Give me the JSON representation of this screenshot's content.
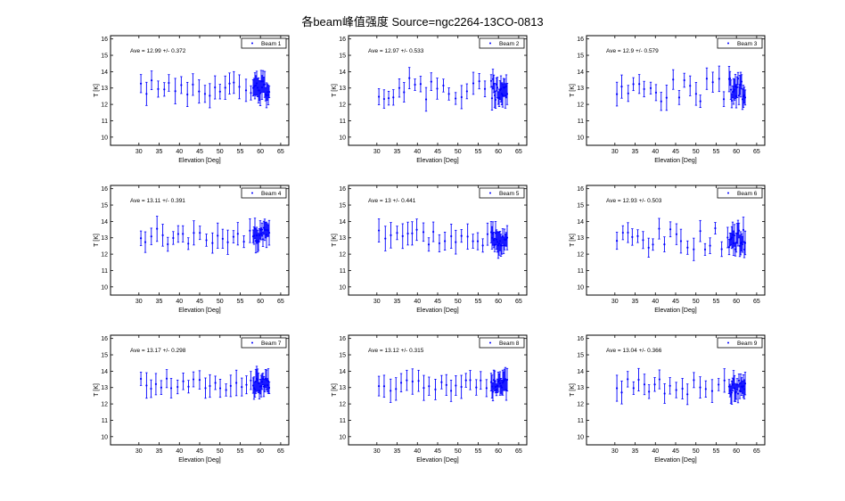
{
  "title": "各beam峰值强度 Source=ngc2264-13CO-0813",
  "colors": {
    "data": "#0000ff",
    "axis": "#000000",
    "background": "#ffffff"
  },
  "chart_data": [
    {
      "type": "scatter",
      "legend": "Beam 1",
      "annotation": "Ave = 12.99 +/- 0.372",
      "xlabel": "Elevation [Deg]",
      "ylabel": "T [K]",
      "xlim": [
        23,
        67
      ],
      "ylim": [
        9.5,
        16.2
      ],
      "xticks": [
        30,
        35,
        40,
        45,
        50,
        55,
        60,
        65
      ],
      "yticks": [
        10,
        11,
        12,
        13,
        14,
        15,
        16
      ],
      "legend_position": "top-right",
      "grid": false,
      "mean": 12.99,
      "spread": 0.372,
      "seed": 1
    },
    {
      "type": "scatter",
      "legend": "Beam 2",
      "annotation": "Ave = 12.97 +/- 0.533",
      "xlabel": "Elevation [Deg]",
      "ylabel": "T [K]",
      "xlim": [
        23,
        67
      ],
      "ylim": [
        9.5,
        16.2
      ],
      "xticks": [
        30,
        35,
        40,
        45,
        50,
        55,
        60,
        65
      ],
      "yticks": [
        10,
        11,
        12,
        13,
        14,
        15,
        16
      ],
      "legend_position": "top-right",
      "grid": false,
      "mean": 12.97,
      "spread": 0.533,
      "seed": 2
    },
    {
      "type": "scatter",
      "legend": "Beam 3",
      "annotation": "Ave = 12.9 +/- 0.579",
      "xlabel": "Elevation [Deg]",
      "ylabel": "T [K]",
      "xlim": [
        23,
        67
      ],
      "ylim": [
        9.5,
        16.2
      ],
      "xticks": [
        30,
        35,
        40,
        45,
        50,
        55,
        60,
        65
      ],
      "yticks": [
        10,
        11,
        12,
        13,
        14,
        15,
        16
      ],
      "legend_position": "top-right",
      "grid": false,
      "mean": 12.9,
      "spread": 0.579,
      "seed": 3
    },
    {
      "type": "scatter",
      "legend": "Beam 4",
      "annotation": "Ave = 13.11 +/- 0.391",
      "xlabel": "Elevation [Deg]",
      "ylabel": "T [K]",
      "xlim": [
        23,
        67
      ],
      "ylim": [
        9.5,
        16.2
      ],
      "xticks": [
        30,
        35,
        40,
        45,
        50,
        55,
        60,
        65
      ],
      "yticks": [
        10,
        11,
        12,
        13,
        14,
        15,
        16
      ],
      "legend_position": "top-right",
      "grid": false,
      "mean": 13.11,
      "spread": 0.391,
      "seed": 4
    },
    {
      "type": "scatter",
      "legend": "Beam 5",
      "annotation": "Ave = 13 +/- 0.441",
      "xlabel": "Elevation [Deg]",
      "ylabel": "T [K]",
      "xlim": [
        23,
        67
      ],
      "ylim": [
        9.5,
        16.2
      ],
      "xticks": [
        30,
        35,
        40,
        45,
        50,
        55,
        60,
        65
      ],
      "yticks": [
        10,
        11,
        12,
        13,
        14,
        15,
        16
      ],
      "legend_position": "top-right",
      "grid": false,
      "mean": 13.0,
      "spread": 0.441,
      "seed": 5
    },
    {
      "type": "scatter",
      "legend": "Beam 6",
      "annotation": "Ave = 12.93 +/- 0.503",
      "xlabel": "Elevation [Deg]",
      "ylabel": "T [K]",
      "xlim": [
        23,
        67
      ],
      "ylim": [
        9.5,
        16.2
      ],
      "xticks": [
        30,
        35,
        40,
        45,
        50,
        55,
        60,
        65
      ],
      "yticks": [
        10,
        11,
        12,
        13,
        14,
        15,
        16
      ],
      "legend_position": "top-right",
      "grid": false,
      "mean": 12.93,
      "spread": 0.503,
      "seed": 6
    },
    {
      "type": "scatter",
      "legend": "Beam 7",
      "annotation": "Ave = 13.17 +/- 0.298",
      "xlabel": "Elevation [Deg]",
      "ylabel": "T [K]",
      "xlim": [
        23,
        67
      ],
      "ylim": [
        9.5,
        16.2
      ],
      "xticks": [
        30,
        35,
        40,
        45,
        50,
        55,
        60,
        65
      ],
      "yticks": [
        10,
        11,
        12,
        13,
        14,
        15,
        16
      ],
      "legend_position": "top-right",
      "grid": false,
      "mean": 13.17,
      "spread": 0.298,
      "seed": 7
    },
    {
      "type": "scatter",
      "legend": "Beam 8",
      "annotation": "Ave = 13.12 +/- 0.315",
      "xlabel": "Elevation [Deg]",
      "ylabel": "T [K]",
      "xlim": [
        23,
        67
      ],
      "ylim": [
        9.5,
        16.2
      ],
      "xticks": [
        30,
        35,
        40,
        45,
        50,
        55,
        60,
        65
      ],
      "yticks": [
        10,
        11,
        12,
        13,
        14,
        15,
        16
      ],
      "legend_position": "top-right",
      "grid": false,
      "mean": 13.12,
      "spread": 0.315,
      "seed": 8
    },
    {
      "type": "scatter",
      "legend": "Beam 9",
      "annotation": "Ave = 13.04 +/- 0.366",
      "xlabel": "Elevation [Deg]",
      "ylabel": "T [K]",
      "xlim": [
        23,
        67
      ],
      "ylim": [
        9.5,
        16.2
      ],
      "xticks": [
        30,
        35,
        40,
        45,
        50,
        55,
        60,
        65
      ],
      "yticks": [
        10,
        11,
        12,
        13,
        14,
        15,
        16
      ],
      "legend_position": "top-right",
      "grid": false,
      "mean": 13.04,
      "spread": 0.366,
      "seed": 9
    }
  ]
}
